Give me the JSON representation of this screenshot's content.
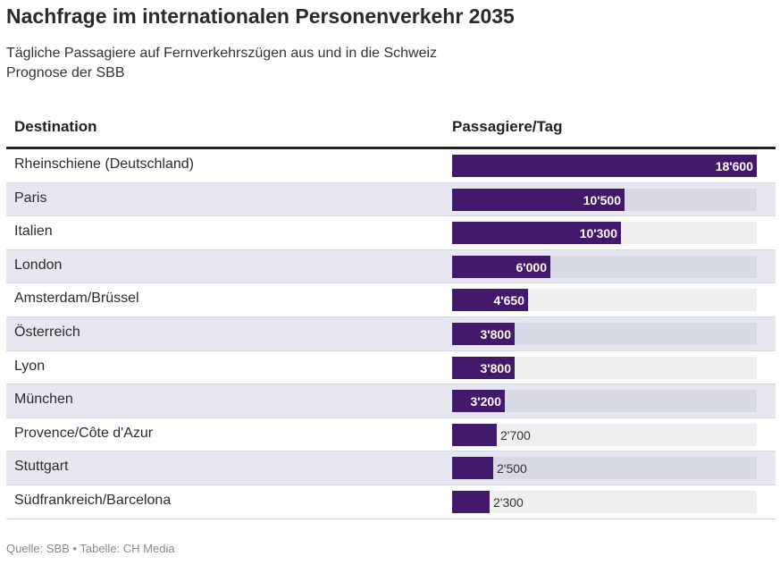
{
  "header": {
    "title": "Nachfrage im internationalen Personenverkehr 2035",
    "subtitle_line1": "Tägliche Passagiere auf Fernverkehrszügen aus und in die Schweiz",
    "subtitle_line2": "Prognose der SBB"
  },
  "table": {
    "col_destination": "Destination",
    "col_value": "Passagiere/Tag"
  },
  "footer": {
    "source": "Quelle: SBB • Tabelle: CH Media"
  },
  "colors": {
    "bar": "#431a6b",
    "track_light": "#efefef",
    "track_alt": "#d7d9e4",
    "row_alt": "#e6e7f1"
  },
  "chart_data": {
    "type": "bar",
    "orientation": "horizontal",
    "categories": [
      "Rheinschiene (Deutschland)",
      "Paris",
      "Italien",
      "London",
      "Amsterdam/Brüssel",
      "Österreich",
      "Lyon",
      "München",
      "Provence/Côte d'Azur",
      "Stuttgart",
      "Südfrankreich/Barcelona"
    ],
    "values": [
      18600,
      10500,
      10300,
      6000,
      4650,
      3800,
      3800,
      3200,
      2700,
      2500,
      2300
    ],
    "value_labels": [
      "18'600",
      "10'500",
      "10'300",
      "6'000",
      "4'650",
      "3'800",
      "3'800",
      "3'200",
      "2'700",
      "2'500",
      "2'300"
    ],
    "xlim": [
      0,
      18600
    ],
    "title": "Nachfrage im internationalen Personenverkehr 2035",
    "subtitle": "Tägliche Passagiere auf Fernverkehrszügen aus und in die Schweiz",
    "legend": "none",
    "grid": false
  }
}
